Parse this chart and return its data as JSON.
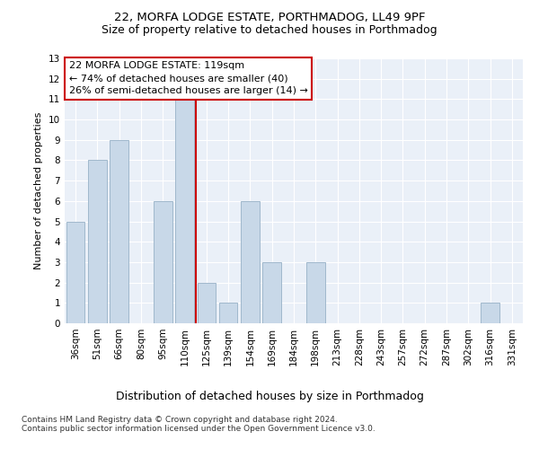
{
  "title1": "22, MORFA LODGE ESTATE, PORTHMADOG, LL49 9PF",
  "title2": "Size of property relative to detached houses in Porthmadog",
  "xlabel": "Distribution of detached houses by size in Porthmadog",
  "ylabel": "Number of detached properties",
  "categories": [
    "36sqm",
    "51sqm",
    "66sqm",
    "80sqm",
    "95sqm",
    "110sqm",
    "125sqm",
    "139sqm",
    "154sqm",
    "169sqm",
    "184sqm",
    "198sqm",
    "213sqm",
    "228sqm",
    "243sqm",
    "257sqm",
    "272sqm",
    "287sqm",
    "302sqm",
    "316sqm",
    "331sqm"
  ],
  "values": [
    5,
    8,
    9,
    0,
    6,
    11,
    2,
    1,
    6,
    3,
    0,
    3,
    0,
    0,
    0,
    0,
    0,
    0,
    0,
    1,
    0
  ],
  "bar_color": "#c8d8e8",
  "bar_edgecolor": "#a0b8cc",
  "vline_x": 5.5,
  "vline_color": "#cc0000",
  "annotation_text": "22 MORFA LODGE ESTATE: 119sqm\n← 74% of detached houses are smaller (40)\n26% of semi-detached houses are larger (14) →",
  "ylim": [
    0,
    13
  ],
  "yticks": [
    0,
    1,
    2,
    3,
    4,
    5,
    6,
    7,
    8,
    9,
    10,
    11,
    12,
    13
  ],
  "footer1": "Contains HM Land Registry data © Crown copyright and database right 2024.",
  "footer2": "Contains public sector information licensed under the Open Government Licence v3.0.",
  "plot_bg_color": "#eaf0f8",
  "title1_fontsize": 9.5,
  "title2_fontsize": 9,
  "ylabel_fontsize": 8,
  "xlabel_fontsize": 9,
  "tick_fontsize": 7.5,
  "footer_fontsize": 6.5,
  "annotation_fontsize": 8
}
